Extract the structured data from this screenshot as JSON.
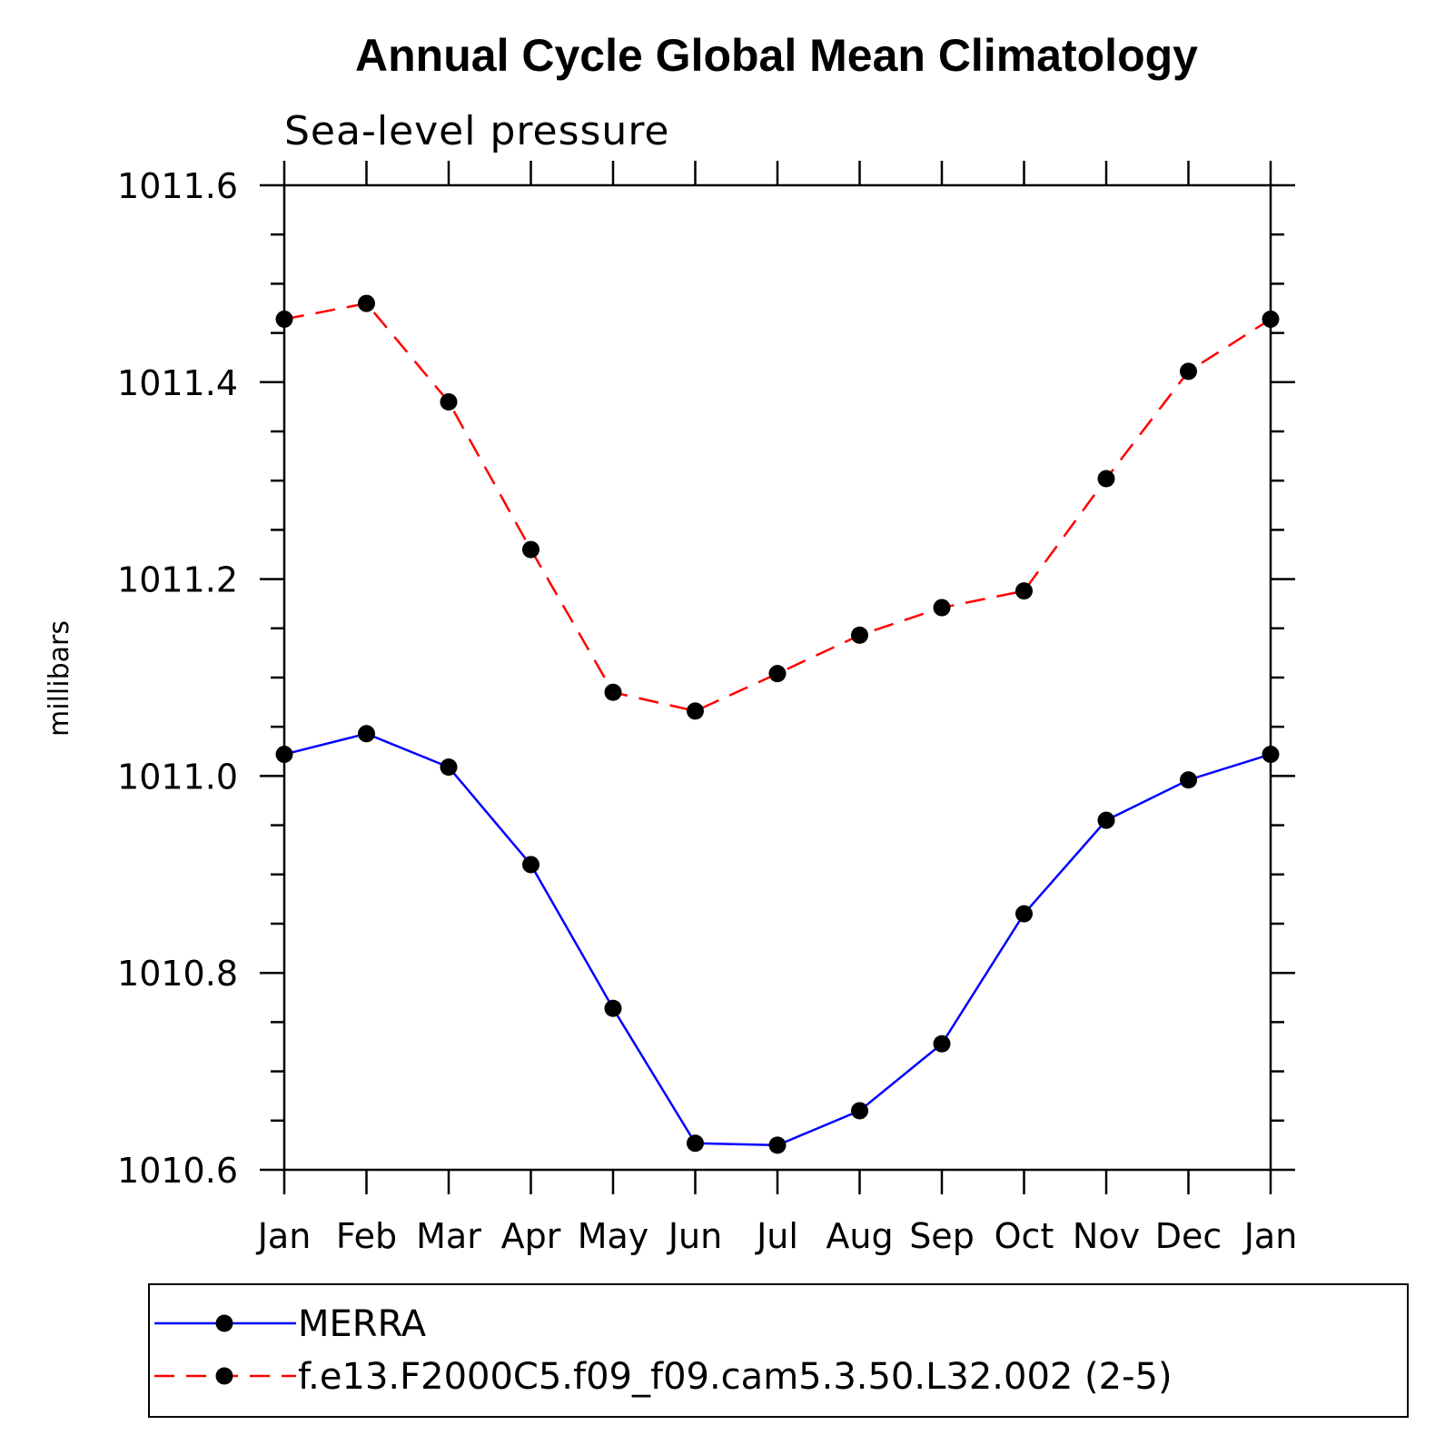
{
  "chart_data": {
    "type": "line",
    "title": "Annual Cycle Global Mean Climatology",
    "subtitle": "Sea-level pressure",
    "xlabel": "",
    "ylabel": "millibars",
    "categories": [
      "Jan",
      "Feb",
      "Mar",
      "Apr",
      "May",
      "Jun",
      "Jul",
      "Aug",
      "Sep",
      "Oct",
      "Nov",
      "Dec",
      "Jan"
    ],
    "ylim": [
      1010.6,
      1011.6
    ],
    "yticks": [
      "1010.6",
      "1010.8",
      "1011.0",
      "1011.2",
      "1011.4",
      "1011.6"
    ],
    "grid": false,
    "legend": "bottom",
    "series": [
      {
        "name": "MERRA",
        "color": "#0000ff",
        "dash": "solid",
        "marker": "filled-circle",
        "values": [
          1011.022,
          1011.043,
          1011.009,
          1010.91,
          1010.764,
          1010.627,
          1010.625,
          1010.66,
          1010.728,
          1010.86,
          1010.955,
          1010.996,
          1011.022
        ]
      },
      {
        "name": "f.e13.F2000C5.f09_f09.cam5.3.50.L32.002 (2-5)",
        "color": "#ff0000",
        "dash": "dashed",
        "marker": "filled-circle",
        "values": [
          1011.464,
          1011.48,
          1011.38,
          1011.23,
          1011.085,
          1011.066,
          1011.104,
          1011.143,
          1011.171,
          1011.188,
          1011.302,
          1011.411,
          1011.464
        ]
      }
    ]
  }
}
